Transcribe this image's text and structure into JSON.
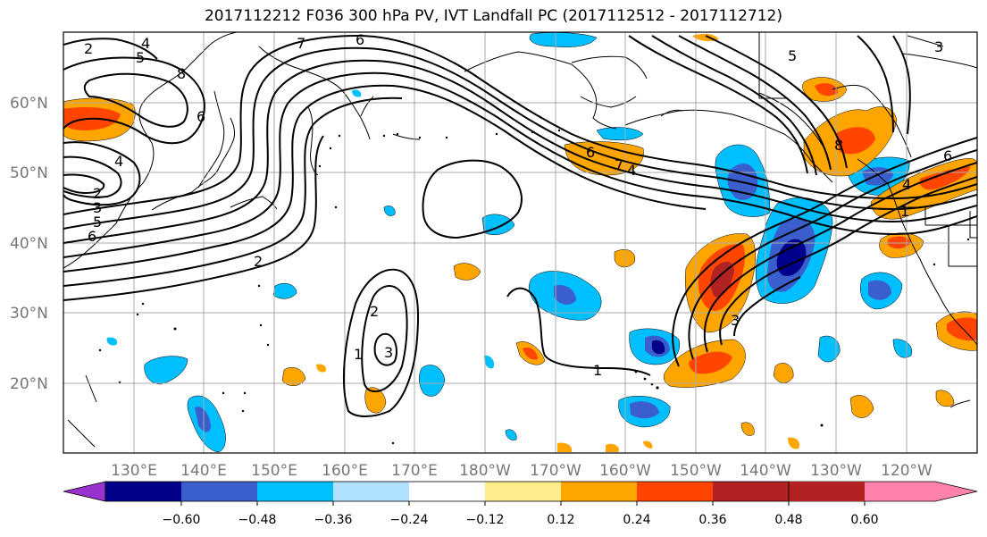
{
  "title": "2017112212 F036 300 hPa PV, IVT Landfall PC (2017112512 - 2017112712)",
  "colors": {
    "land": "#000000",
    "grid": "#aaaaaa",
    "contour": "#000000"
  },
  "axes": {
    "lat_labels": [
      "60°N",
      "50°N",
      "40°N",
      "30°N",
      "20°N"
    ],
    "lon_labels": [
      "130°E",
      "140°E",
      "150°E",
      "160°E",
      "170°E",
      "180°W",
      "170°W",
      "160°W",
      "150°W",
      "140°W",
      "130°W",
      "120°W"
    ]
  },
  "colorbar": {
    "colors": [
      "#9932cc",
      "#00008b",
      "#3a5fcd",
      "#00bfff",
      "#b0e2ff",
      "#ffffff",
      "#ffec8b",
      "#ffa500",
      "#ff4500",
      "#b22222",
      "#ff82ab"
    ],
    "tick_labels": [
      "−0.60",
      "−0.48",
      "−0.36",
      "−0.24",
      "−0.12",
      "0.12",
      "0.24",
      "0.36",
      "0.48",
      "0.60"
    ]
  },
  "contour_labels": [
    "2",
    "5",
    "4",
    "8",
    "6",
    "4",
    "2",
    "3",
    "5",
    "6",
    "2",
    "7",
    "6",
    "6",
    "7",
    "4",
    "5",
    "8",
    "3",
    "6",
    "4",
    "1",
    "2",
    "1",
    "3",
    "1",
    "3"
  ]
}
